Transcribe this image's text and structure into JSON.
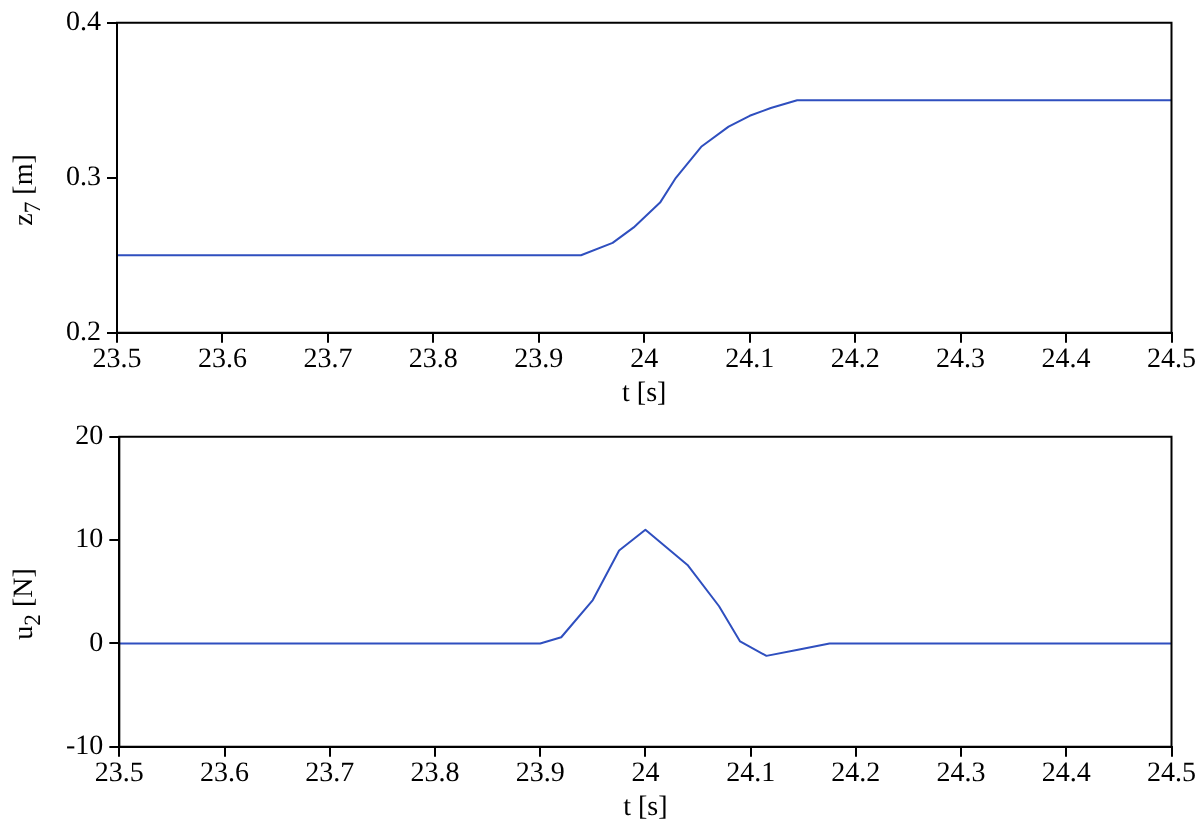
{
  "chart_data": [
    {
      "type": "line",
      "xlabel": "t [s]",
      "ylabel": "z$_{7}$ [m]",
      "xlim": [
        23.5,
        24.5
      ],
      "xticks": [
        23.5,
        23.6,
        23.7,
        23.8,
        23.9,
        24,
        24.1,
        24.2,
        24.3,
        24.4,
        24.5
      ],
      "ylim": [
        0.2,
        0.4
      ],
      "yticks": [
        0.2,
        0.3,
        0.4
      ],
      "grid": false,
      "legend": false,
      "series": [
        {
          "color": "#2f4fbf",
          "x": [
            23.5,
            23.94,
            23.97,
            23.99,
            24.015,
            24.03,
            24.054,
            24.08,
            24.1,
            24.12,
            24.145,
            24.5
          ],
          "values": [
            0.25,
            0.25,
            0.258,
            0.268,
            0.284,
            0.3,
            0.32,
            0.333,
            0.34,
            0.345,
            0.35,
            0.35
          ]
        }
      ]
    },
    {
      "type": "line",
      "xlabel": "t [s]",
      "ylabel": "u$_{2}$ [N]",
      "xlim": [
        23.5,
        24.5
      ],
      "xticks": [
        23.5,
        23.6,
        23.7,
        23.8,
        23.9,
        24,
        24.1,
        24.2,
        24.3,
        24.4,
        24.5
      ],
      "ylim": [
        -10,
        20
      ],
      "yticks": [
        -10,
        0,
        10,
        20
      ],
      "grid": false,
      "legend": false,
      "series": [
        {
          "color": "#2f4fbf",
          "x": [
            23.5,
            23.9,
            23.92,
            23.95,
            23.975,
            24.0,
            24.04,
            24.07,
            24.09,
            24.115,
            24.145,
            24.175,
            24.5
          ],
          "values": [
            0,
            0,
            0.6,
            4.2,
            9,
            11,
            7.6,
            3.6,
            0.2,
            -1.2,
            -0.6,
            0,
            0
          ]
        }
      ]
    }
  ]
}
